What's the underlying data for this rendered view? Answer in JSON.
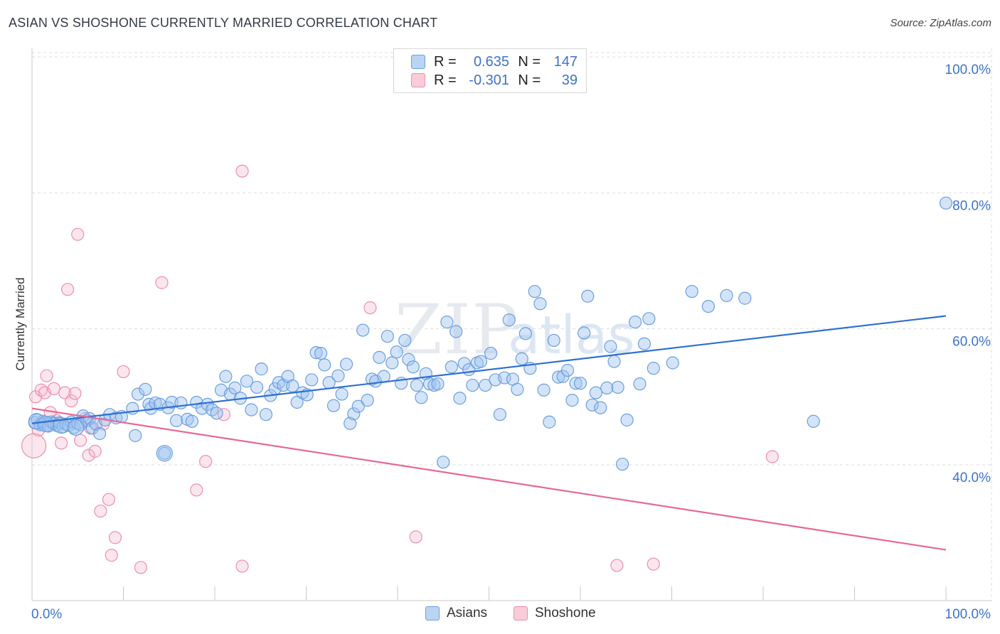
{
  "title": "ASIAN VS SHOSHONE CURRENTLY MARRIED CORRELATION CHART",
  "source": "Source: ZipAtlas.com",
  "watermark": {
    "zip": "ZIP",
    "atlas": "atlas"
  },
  "colors": {
    "asian_fill": "rgba(160,196,240,0.45)",
    "asian_stroke": "#6a9fe0",
    "asian_line": "#2f6fd1",
    "shoshone_fill": "rgba(246,184,204,0.35)",
    "shoshone_stroke": "#eb8fae",
    "shoshone_line": "#e5689a",
    "grid": "#dddddd",
    "tick_label": "#3b74c9"
  },
  "legend": {
    "rows": [
      {
        "r_label": "R =",
        "r_value": "0.635",
        "n_label": "N =",
        "n_value": "147"
      },
      {
        "r_label": "R =",
        "r_value": "-0.301",
        "n_label": "N =",
        "n_value": "39"
      }
    ]
  },
  "bottom_legend": {
    "asian": "Asians",
    "shoshone": "Shoshone"
  },
  "chart_data": {
    "type": "scatter",
    "title": "ASIAN VS SHOSHONE CURRENTLY MARRIED CORRELATION CHART",
    "xlabel": "",
    "ylabel": "Currently Married",
    "xlim": [
      0,
      100
    ],
    "ylim": [
      20,
      100
    ],
    "x_tick_labels": [
      "0.0%",
      "100.0%"
    ],
    "y_ticks": [
      40,
      60,
      80,
      100
    ],
    "y_tick_labels": [
      "40.0%",
      "60.0%",
      "80.0%",
      "100.0%"
    ],
    "grid": true,
    "series": [
      {
        "name": "Asians",
        "r": 0.635,
        "n": 147,
        "trend": {
          "x": [
            0,
            100
          ],
          "y": [
            46.1,
            61.9
          ]
        },
        "points": [
          [
            0.3,
            46.2
          ],
          [
            0.6,
            46.6
          ],
          [
            0.9,
            45.9
          ],
          [
            1.2,
            46.4
          ],
          [
            1.5,
            46.0
          ],
          [
            1.8,
            45.7
          ],
          [
            2.1,
            46.3
          ],
          [
            2.4,
            46.1
          ],
          [
            2.7,
            45.8
          ],
          [
            3.0,
            46.2
          ],
          [
            3.4,
            45.6
          ],
          [
            3.7,
            46.0
          ],
          [
            4.0,
            45.8
          ],
          [
            4.3,
            46.3
          ],
          [
            4.6,
            45.5
          ],
          [
            5.0,
            46.1
          ],
          [
            5.3,
            45.9
          ],
          [
            5.6,
            47.2
          ],
          [
            6.0,
            46.5
          ],
          [
            6.3,
            46.8
          ],
          [
            6.6,
            45.4
          ],
          [
            7.0,
            46.0
          ],
          [
            7.4,
            44.6
          ],
          [
            8.0,
            46.6
          ],
          [
            8.5,
            47.4
          ],
          [
            9.2,
            46.9
          ],
          [
            9.8,
            47.1
          ],
          [
            11.0,
            48.3
          ],
          [
            11.3,
            44.3
          ],
          [
            11.6,
            50.4
          ],
          [
            12.4,
            51.1
          ],
          [
            12.8,
            48.9
          ],
          [
            13.0,
            48.3
          ],
          [
            13.5,
            49.1
          ],
          [
            14.0,
            48.9
          ],
          [
            14.5,
            41.7
          ],
          [
            14.9,
            48.4
          ],
          [
            15.3,
            49.2
          ],
          [
            15.8,
            46.5
          ],
          [
            16.3,
            49.1
          ],
          [
            17.0,
            46.7
          ],
          [
            17.5,
            46.4
          ],
          [
            18.0,
            49.2
          ],
          [
            18.6,
            48.3
          ],
          [
            19.2,
            48.9
          ],
          [
            19.7,
            48.1
          ],
          [
            20.2,
            47.6
          ],
          [
            20.7,
            51.0
          ],
          [
            21.2,
            53.0
          ],
          [
            21.7,
            50.4
          ],
          [
            22.2,
            51.3
          ],
          [
            22.8,
            49.8
          ],
          [
            23.5,
            52.3
          ],
          [
            24.0,
            48.1
          ],
          [
            24.6,
            51.4
          ],
          [
            25.1,
            54.1
          ],
          [
            25.6,
            47.4
          ],
          [
            26.1,
            50.2
          ],
          [
            26.6,
            51.2
          ],
          [
            27.0,
            52.1
          ],
          [
            27.5,
            51.7
          ],
          [
            28.0,
            53.0
          ],
          [
            28.5,
            51.6
          ],
          [
            29.0,
            49.2
          ],
          [
            29.6,
            50.6
          ],
          [
            30.1,
            50.3
          ],
          [
            30.6,
            52.5
          ],
          [
            31.1,
            56.5
          ],
          [
            31.6,
            56.4
          ],
          [
            32.0,
            54.7
          ],
          [
            32.5,
            52.1
          ],
          [
            33.0,
            48.7
          ],
          [
            33.5,
            53.1
          ],
          [
            33.9,
            50.4
          ],
          [
            34.4,
            54.8
          ],
          [
            34.8,
            46.1
          ],
          [
            35.2,
            47.5
          ],
          [
            35.7,
            48.6
          ],
          [
            36.2,
            59.8
          ],
          [
            36.7,
            49.5
          ],
          [
            37.2,
            52.6
          ],
          [
            37.6,
            52.3
          ],
          [
            38.0,
            55.8
          ],
          [
            38.5,
            53.0
          ],
          [
            38.9,
            58.9
          ],
          [
            39.4,
            55.0
          ],
          [
            39.9,
            56.6
          ],
          [
            40.4,
            52.0
          ],
          [
            40.8,
            58.3
          ],
          [
            41.2,
            55.5
          ],
          [
            41.7,
            54.4
          ],
          [
            42.1,
            51.7
          ],
          [
            42.6,
            49.9
          ],
          [
            43.1,
            53.4
          ],
          [
            43.5,
            51.9
          ],
          [
            44.0,
            51.7
          ],
          [
            44.4,
            51.9
          ],
          [
            45.0,
            40.4
          ],
          [
            45.4,
            61.0
          ],
          [
            45.9,
            54.4
          ],
          [
            46.4,
            59.6
          ],
          [
            46.8,
            49.8
          ],
          [
            47.3,
            54.9
          ],
          [
            47.8,
            54.0
          ],
          [
            48.2,
            51.7
          ],
          [
            48.7,
            55.0
          ],
          [
            49.1,
            55.2
          ],
          [
            49.6,
            51.7
          ],
          [
            50.2,
            56.4
          ],
          [
            50.7,
            52.5
          ],
          [
            51.2,
            47.4
          ],
          [
            51.7,
            52.8
          ],
          [
            52.2,
            61.3
          ],
          [
            52.6,
            52.6
          ],
          [
            53.1,
            51.1
          ],
          [
            53.6,
            55.6
          ],
          [
            54.0,
            59.3
          ],
          [
            54.5,
            54.2
          ],
          [
            55.0,
            65.5
          ],
          [
            55.6,
            63.7
          ],
          [
            56.0,
            51.0
          ],
          [
            56.6,
            46.3
          ],
          [
            57.1,
            58.3
          ],
          [
            57.6,
            52.9
          ],
          [
            58.1,
            53.0
          ],
          [
            58.6,
            53.9
          ],
          [
            59.1,
            49.5
          ],
          [
            59.5,
            52.0
          ],
          [
            60.0,
            52.0
          ],
          [
            60.4,
            59.4
          ],
          [
            60.8,
            64.8
          ],
          [
            61.3,
            48.8
          ],
          [
            61.7,
            50.6
          ],
          [
            62.2,
            48.4
          ],
          [
            62.9,
            51.3
          ],
          [
            63.3,
            57.4
          ],
          [
            63.7,
            55.2
          ],
          [
            64.1,
            51.4
          ],
          [
            64.6,
            40.1
          ],
          [
            65.1,
            46.6
          ],
          [
            66.0,
            61.0
          ],
          [
            66.5,
            51.9
          ],
          [
            67.0,
            57.8
          ],
          [
            67.5,
            61.5
          ],
          [
            68.0,
            54.2
          ],
          [
            70.1,
            55.0
          ],
          [
            72.2,
            65.5
          ],
          [
            74.0,
            63.3
          ],
          [
            76.0,
            64.9
          ],
          [
            78.0,
            64.5
          ],
          [
            85.5,
            46.4
          ],
          [
            100.0,
            78.5
          ]
        ],
        "large_points": [
          [
            0.5,
            46.4
          ],
          [
            1.5,
            46.0
          ],
          [
            3.2,
            45.8
          ],
          [
            4.8,
            45.5
          ],
          [
            14.5,
            41.7
          ]
        ]
      },
      {
        "name": "Shoshone",
        "r": -0.301,
        "n": 39,
        "trend": {
          "x": [
            0,
            100
          ],
          "y": [
            48.3,
            27.5
          ]
        },
        "points": [
          [
            0.4,
            50.0
          ],
          [
            0.7,
            45.1
          ],
          [
            1.0,
            51.0
          ],
          [
            1.4,
            50.6
          ],
          [
            1.6,
            53.1
          ],
          [
            2.0,
            47.7
          ],
          [
            2.4,
            51.2
          ],
          [
            2.7,
            46.5
          ],
          [
            3.2,
            43.2
          ],
          [
            3.6,
            50.6
          ],
          [
            3.9,
            65.8
          ],
          [
            4.3,
            49.4
          ],
          [
            4.7,
            50.5
          ],
          [
            5.0,
            73.9
          ],
          [
            5.3,
            43.6
          ],
          [
            5.8,
            46.8
          ],
          [
            6.2,
            41.4
          ],
          [
            6.4,
            45.4
          ],
          [
            6.9,
            42.0
          ],
          [
            7.5,
            33.2
          ],
          [
            7.8,
            46.0
          ],
          [
            8.4,
            34.9
          ],
          [
            8.7,
            26.7
          ],
          [
            9.1,
            29.3
          ],
          [
            10.0,
            53.7
          ],
          [
            11.9,
            24.9
          ],
          [
            14.2,
            66.8
          ],
          [
            18.0,
            36.3
          ],
          [
            19.0,
            40.5
          ],
          [
            21.0,
            47.4
          ],
          [
            23.0,
            25.1
          ],
          [
            23.0,
            83.2
          ],
          [
            37.0,
            63.1
          ],
          [
            42.0,
            29.4
          ],
          [
            64.0,
            25.2
          ],
          [
            68.0,
            25.4
          ],
          [
            81.0,
            41.2
          ]
        ],
        "large_points": [
          [
            0.2,
            42.8
          ]
        ]
      }
    ]
  }
}
